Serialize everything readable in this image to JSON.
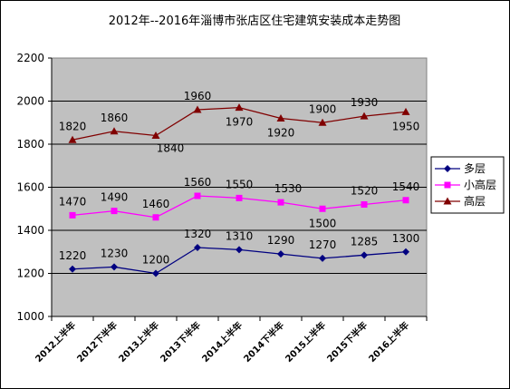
{
  "chart_data": {
    "type": "line",
    "title": "2012年--2016年淄博市张店区住宅建筑安装成本走势图",
    "xlabel": "",
    "ylabel": "",
    "categories": [
      "2012上半年",
      "2012下半年",
      "2013上半年",
      "2013下半年",
      "2014上半年",
      "2014下半年",
      "2015上半年",
      "2015下半年",
      "2016上半年"
    ],
    "ylim": [
      1000,
      2200
    ],
    "yticks": [
      1000,
      1200,
      1400,
      1600,
      1800,
      2000,
      2200
    ],
    "grid": true,
    "legend_position": "right",
    "series": [
      {
        "name": "多层",
        "color": "#000080",
        "marker": "diamond",
        "values": [
          1220,
          1230,
          1200,
          1320,
          1310,
          1290,
          1270,
          1285,
          1300
        ]
      },
      {
        "name": "小高层",
        "color": "#FF00FF",
        "marker": "square",
        "values": [
          1470,
          1490,
          1460,
          1560,
          1550,
          1530,
          1500,
          1520,
          1540
        ]
      },
      {
        "name": "高层",
        "color": "#800000",
        "marker": "triangle",
        "values": [
          1820,
          1860,
          1840,
          1960,
          1970,
          1920,
          1900,
          1930,
          1950
        ]
      }
    ],
    "plot_bg": "#C0C0C0"
  }
}
